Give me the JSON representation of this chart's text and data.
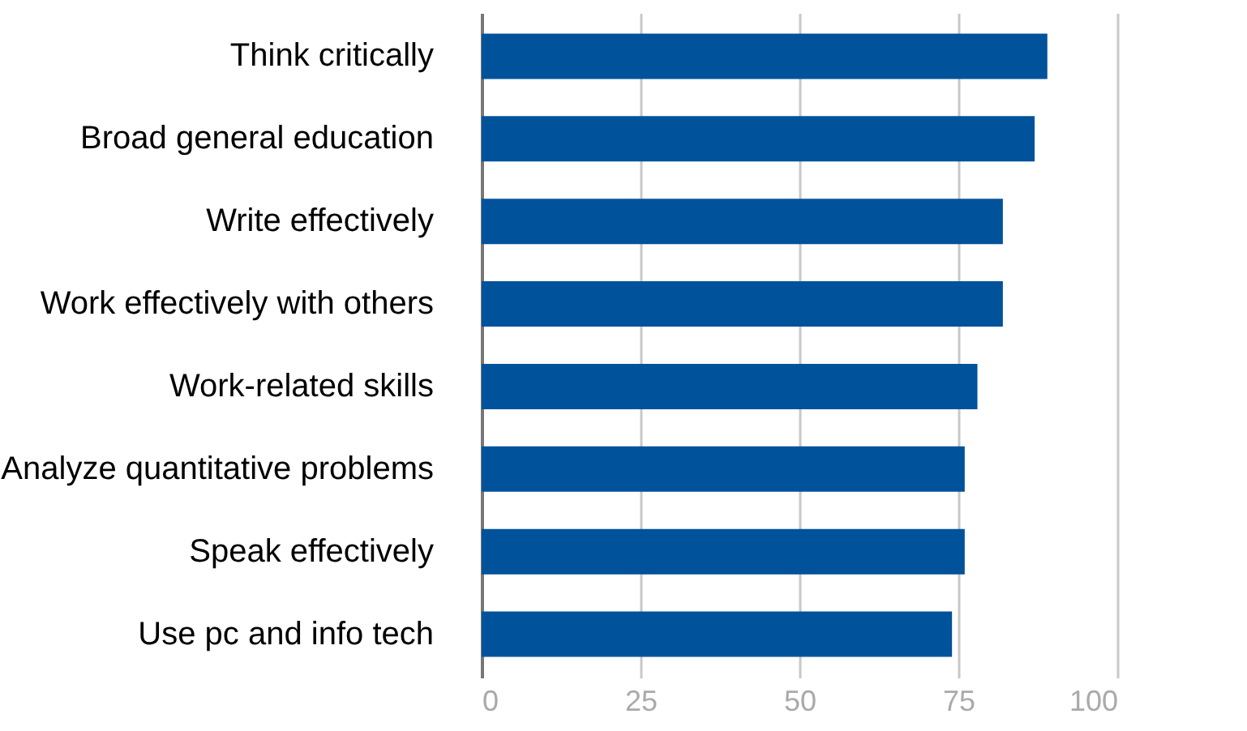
{
  "chart_data": {
    "type": "bar",
    "orientation": "horizontal",
    "categories": [
      "Think critically",
      "Broad general education",
      "Write effectively",
      "Work effectively with others",
      "Work-related skills",
      "Analyze quantitative problems",
      "Speak effectively",
      "Use pc and info tech"
    ],
    "values": [
      89,
      87,
      82,
      82,
      78,
      76,
      76,
      74
    ],
    "color": "#00529b",
    "xlim": [
      0,
      100
    ],
    "xticks": [
      0,
      25,
      50,
      75,
      100
    ],
    "grid": "x"
  }
}
